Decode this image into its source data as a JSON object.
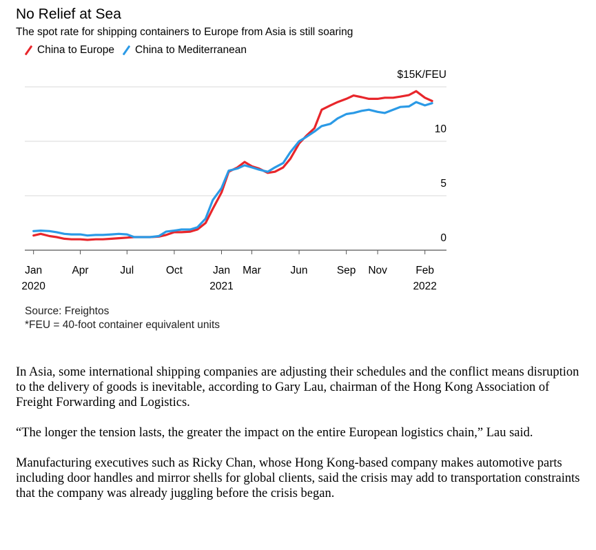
{
  "chart_data": {
    "type": "line",
    "title": "No Relief at Sea",
    "subtitle": "The spot rate for shipping containers to Europe from Asia is still soaring",
    "unit_label": "$15K/FEU",
    "ylim": [
      0,
      15
    ],
    "y_ticks": [
      {
        "value": 15,
        "label": "$15K/FEU"
      },
      {
        "value": 10,
        "label": "10"
      },
      {
        "value": 5,
        "label": "5"
      },
      {
        "value": 0,
        "label": "0"
      }
    ],
    "grid": true,
    "x_range": [
      "2019-12-15",
      "2022-03-15"
    ],
    "x_ticks": [
      {
        "date": "2020-01-01",
        "label": "Jan",
        "sublabel": "2020"
      },
      {
        "date": "2020-04-01",
        "label": "Apr",
        "sublabel": ""
      },
      {
        "date": "2020-07-01",
        "label": "Jul",
        "sublabel": ""
      },
      {
        "date": "2020-10-01",
        "label": "Oct",
        "sublabel": ""
      },
      {
        "date": "2021-01-01",
        "label": "Jan",
        "sublabel": "2021"
      },
      {
        "date": "2021-03-01",
        "label": "Mar",
        "sublabel": ""
      },
      {
        "date": "2021-06-01",
        "label": "Jun",
        "sublabel": ""
      },
      {
        "date": "2021-09-01",
        "label": "Sep",
        "sublabel": ""
      },
      {
        "date": "2021-11-01",
        "label": "Nov",
        "sublabel": ""
      },
      {
        "date": "2022-02-01",
        "label": "Feb",
        "sublabel": "2022"
      }
    ],
    "legend_placement": "top-left",
    "series": [
      {
        "name": "China to Europe",
        "color": "#e8262b",
        "points": [
          [
            "2020-01-01",
            1.35
          ],
          [
            "2020-01-15",
            1.5
          ],
          [
            "2020-02-01",
            1.3
          ],
          [
            "2020-02-15",
            1.2
          ],
          [
            "2020-03-01",
            1.05
          ],
          [
            "2020-03-15",
            1.0
          ],
          [
            "2020-04-01",
            1.0
          ],
          [
            "2020-04-15",
            0.95
          ],
          [
            "2020-05-01",
            1.0
          ],
          [
            "2020-05-15",
            1.0
          ],
          [
            "2020-06-01",
            1.05
          ],
          [
            "2020-06-15",
            1.1
          ],
          [
            "2020-07-01",
            1.15
          ],
          [
            "2020-07-15",
            1.2
          ],
          [
            "2020-08-01",
            1.2
          ],
          [
            "2020-08-15",
            1.2
          ],
          [
            "2020-09-01",
            1.25
          ],
          [
            "2020-09-15",
            1.4
          ],
          [
            "2020-10-01",
            1.65
          ],
          [
            "2020-10-15",
            1.65
          ],
          [
            "2020-11-01",
            1.7
          ],
          [
            "2020-11-15",
            1.9
          ],
          [
            "2020-12-01",
            2.5
          ],
          [
            "2020-12-15",
            3.8
          ],
          [
            "2021-01-01",
            5.3
          ],
          [
            "2021-01-15",
            7.2
          ],
          [
            "2021-02-01",
            7.6
          ],
          [
            "2021-02-15",
            8.1
          ],
          [
            "2021-03-01",
            7.7
          ],
          [
            "2021-03-15",
            7.5
          ],
          [
            "2021-04-01",
            7.1
          ],
          [
            "2021-04-15",
            7.2
          ],
          [
            "2021-05-01",
            7.6
          ],
          [
            "2021-05-15",
            8.4
          ],
          [
            "2021-06-01",
            9.8
          ],
          [
            "2021-06-15",
            10.5
          ],
          [
            "2021-07-01",
            11.2
          ],
          [
            "2021-07-15",
            12.9
          ],
          [
            "2021-08-01",
            13.3
          ],
          [
            "2021-08-15",
            13.6
          ],
          [
            "2021-09-01",
            13.9
          ],
          [
            "2021-09-15",
            14.2
          ],
          [
            "2021-10-01",
            14.05
          ],
          [
            "2021-10-15",
            13.9
          ],
          [
            "2021-11-01",
            13.9
          ],
          [
            "2021-11-15",
            14.0
          ],
          [
            "2021-12-01",
            14.0
          ],
          [
            "2021-12-15",
            14.1
          ],
          [
            "2022-01-01",
            14.25
          ],
          [
            "2022-01-15",
            14.6
          ],
          [
            "2022-02-01",
            14.0
          ],
          [
            "2022-02-15",
            13.7
          ]
        ]
      },
      {
        "name": "China to Mediterranean",
        "color": "#2b9ae6",
        "points": [
          [
            "2020-01-01",
            1.75
          ],
          [
            "2020-01-15",
            1.8
          ],
          [
            "2020-02-01",
            1.75
          ],
          [
            "2020-02-15",
            1.65
          ],
          [
            "2020-03-01",
            1.5
          ],
          [
            "2020-03-15",
            1.45
          ],
          [
            "2020-04-01",
            1.45
          ],
          [
            "2020-04-15",
            1.35
          ],
          [
            "2020-05-01",
            1.4
          ],
          [
            "2020-05-15",
            1.4
          ],
          [
            "2020-06-01",
            1.45
          ],
          [
            "2020-06-15",
            1.5
          ],
          [
            "2020-07-01",
            1.45
          ],
          [
            "2020-07-15",
            1.2
          ],
          [
            "2020-08-01",
            1.2
          ],
          [
            "2020-08-15",
            1.2
          ],
          [
            "2020-09-01",
            1.3
          ],
          [
            "2020-09-15",
            1.7
          ],
          [
            "2020-10-01",
            1.8
          ],
          [
            "2020-10-15",
            1.9
          ],
          [
            "2020-11-01",
            1.9
          ],
          [
            "2020-11-15",
            2.1
          ],
          [
            "2020-12-01",
            2.9
          ],
          [
            "2020-12-15",
            4.6
          ],
          [
            "2021-01-01",
            5.7
          ],
          [
            "2021-01-15",
            7.3
          ],
          [
            "2021-02-01",
            7.5
          ],
          [
            "2021-02-15",
            7.8
          ],
          [
            "2021-03-01",
            7.6
          ],
          [
            "2021-03-15",
            7.4
          ],
          [
            "2021-04-01",
            7.2
          ],
          [
            "2021-04-15",
            7.6
          ],
          [
            "2021-05-01",
            8.0
          ],
          [
            "2021-05-15",
            9.0
          ],
          [
            "2021-06-01",
            10.0
          ],
          [
            "2021-06-15",
            10.4
          ],
          [
            "2021-07-01",
            10.9
          ],
          [
            "2021-07-15",
            11.4
          ],
          [
            "2021-08-01",
            11.6
          ],
          [
            "2021-08-15",
            12.1
          ],
          [
            "2021-09-01",
            12.5
          ],
          [
            "2021-09-15",
            12.6
          ],
          [
            "2021-10-01",
            12.8
          ],
          [
            "2021-10-15",
            12.9
          ],
          [
            "2021-11-01",
            12.7
          ],
          [
            "2021-11-15",
            12.6
          ],
          [
            "2021-12-01",
            12.9
          ],
          [
            "2021-12-15",
            13.15
          ],
          [
            "2022-01-01",
            13.2
          ],
          [
            "2022-01-15",
            13.6
          ],
          [
            "2022-02-01",
            13.3
          ],
          [
            "2022-02-15",
            13.5
          ]
        ]
      }
    ]
  },
  "source": "Source: Freightos",
  "footnote": "*FEU = 40-foot container equivalent units",
  "article": {
    "paragraphs": [
      "In Asia, some international shipping companies are adjusting their schedules and the conflict means disruption to the delivery of goods is inevitable, according to Gary Lau, chairman of the Hong Kong Association of Freight Forwarding and Logistics.",
      "“The longer the tension lasts, the greater the impact on the entire European logistics chain,” Lau said.",
      "Manufacturing executives such as Ricky Chan, whose Hong Kong-based company makes automotive parts including door handles and mirror shells for global clients, said the crisis may add to transportation constraints that the company was already juggling before the crisis began."
    ]
  }
}
